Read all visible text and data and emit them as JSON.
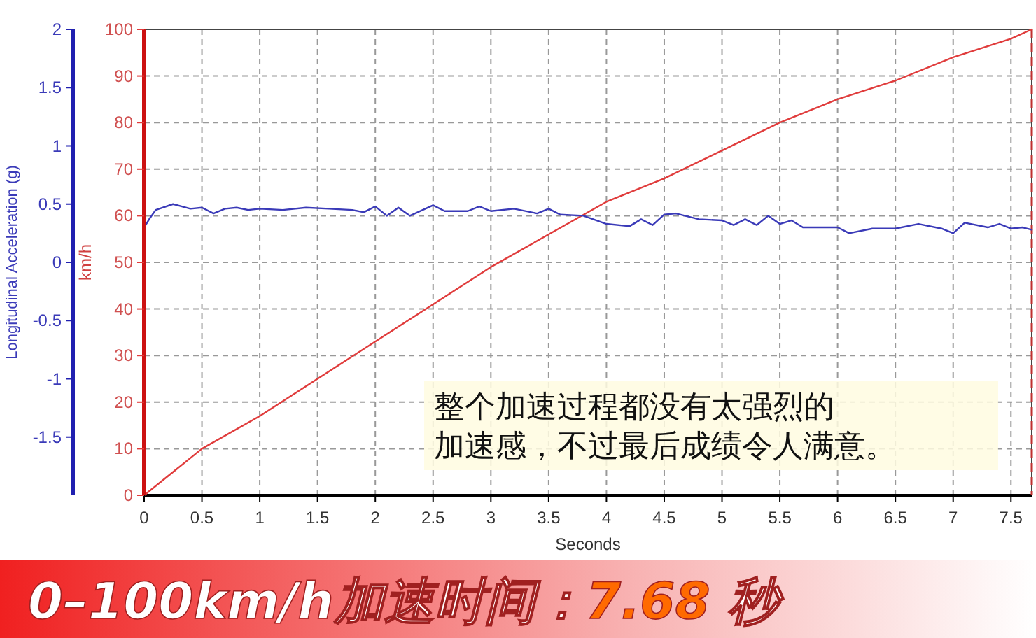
{
  "chart_data": {
    "type": "line",
    "title": "0–100km/h加速时间：7.68 秒",
    "xlabel": "Seconds",
    "ylabel": "km/h",
    "y2label": "Longitudinal Acceleration (g)",
    "annotations": [
      "整个加速过程都没有太强烈的加速感，不过最后成绩令人满意。"
    ],
    "xlim": [
      0,
      7.68
    ],
    "xticks": [
      0,
      0.5,
      1,
      1.5,
      2,
      2.5,
      3,
      3.5,
      4,
      4.5,
      5,
      5.5,
      6,
      6.5,
      7,
      7.5
    ],
    "ylim": [
      0,
      100
    ],
    "yticks": [
      0,
      10,
      20,
      30,
      40,
      50,
      60,
      70,
      80,
      90,
      100
    ],
    "y2lim": [
      -2,
      2
    ],
    "y2ticks": [
      -1.5,
      -1,
      -0.5,
      0,
      0.5,
      1,
      1.5,
      2
    ],
    "grid": true,
    "ref_lines": [
      {
        "axis": "x",
        "value": 7.68,
        "color": "#c03030",
        "line_style": "dashed"
      }
    ],
    "series": [
      {
        "color": "#e03c3c",
        "x": [
          0,
          0.5,
          1,
          1.5,
          2,
          2.5,
          3,
          3.5,
          4,
          4.5,
          5,
          5.5,
          6,
          6.5,
          7,
          7.5,
          7.68
        ],
        "values": [
          0,
          10,
          17,
          25,
          33,
          41,
          49,
          56,
          63,
          68,
          74,
          80,
          85,
          89,
          94,
          98,
          100
        ]
      },
      {
        "color": "#3a3ab8",
        "axis": "y2",
        "x": [
          0,
          0.05,
          0.1,
          0.25,
          0.4,
          0.5,
          0.6,
          0.7,
          0.8,
          0.9,
          1,
          1.2,
          1.4,
          1.6,
          1.8,
          1.9,
          2,
          2.1,
          2.2,
          2.3,
          2.5,
          2.6,
          2.8,
          2.9,
          3,
          3.2,
          3.4,
          3.5,
          3.6,
          3.8,
          4,
          4.2,
          4.3,
          4.4,
          4.5,
          4.6,
          4.8,
          5,
          5.1,
          5.2,
          5.3,
          5.4,
          5.5,
          5.6,
          5.7,
          6,
          6.1,
          6.3,
          6.5,
          6.7,
          6.9,
          7,
          7.1,
          7.3,
          7.4,
          7.5,
          7.6,
          7.68
        ],
        "values": [
          0.3,
          0.38,
          0.45,
          0.5,
          0.46,
          0.47,
          0.42,
          0.46,
          0.47,
          0.45,
          0.46,
          0.45,
          0.47,
          0.46,
          0.45,
          0.43,
          0.48,
          0.4,
          0.47,
          0.4,
          0.49,
          0.44,
          0.44,
          0.48,
          0.44,
          0.46,
          0.42,
          0.46,
          0.41,
          0.4,
          0.33,
          0.31,
          0.37,
          0.32,
          0.41,
          0.42,
          0.37,
          0.36,
          0.32,
          0.37,
          0.32,
          0.4,
          0.33,
          0.36,
          0.3,
          0.3,
          0.25,
          0.29,
          0.29,
          0.33,
          0.29,
          0.25,
          0.34,
          0.3,
          0.33,
          0.29,
          0.3,
          0.28
        ]
      }
    ]
  }
}
